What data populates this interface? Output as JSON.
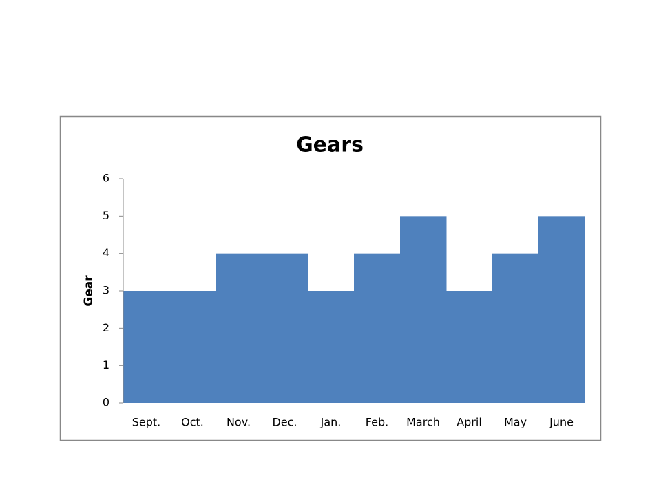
{
  "chart_data": {
    "type": "bar",
    "title": "Gears",
    "y_label": "Gear",
    "categories": [
      "Sept.",
      "Oct.",
      "Nov.",
      "Dec.",
      "Jan.",
      "Feb.",
      "March",
      "April",
      "May",
      "June"
    ],
    "values": [
      3,
      3,
      4,
      4,
      3,
      4,
      5,
      3,
      4,
      5
    ],
    "color": "#4f81bd",
    "ylim": [
      0,
      6
    ],
    "yticks": [
      0,
      1,
      2,
      3,
      4,
      5,
      6
    ],
    "grid": false
  }
}
